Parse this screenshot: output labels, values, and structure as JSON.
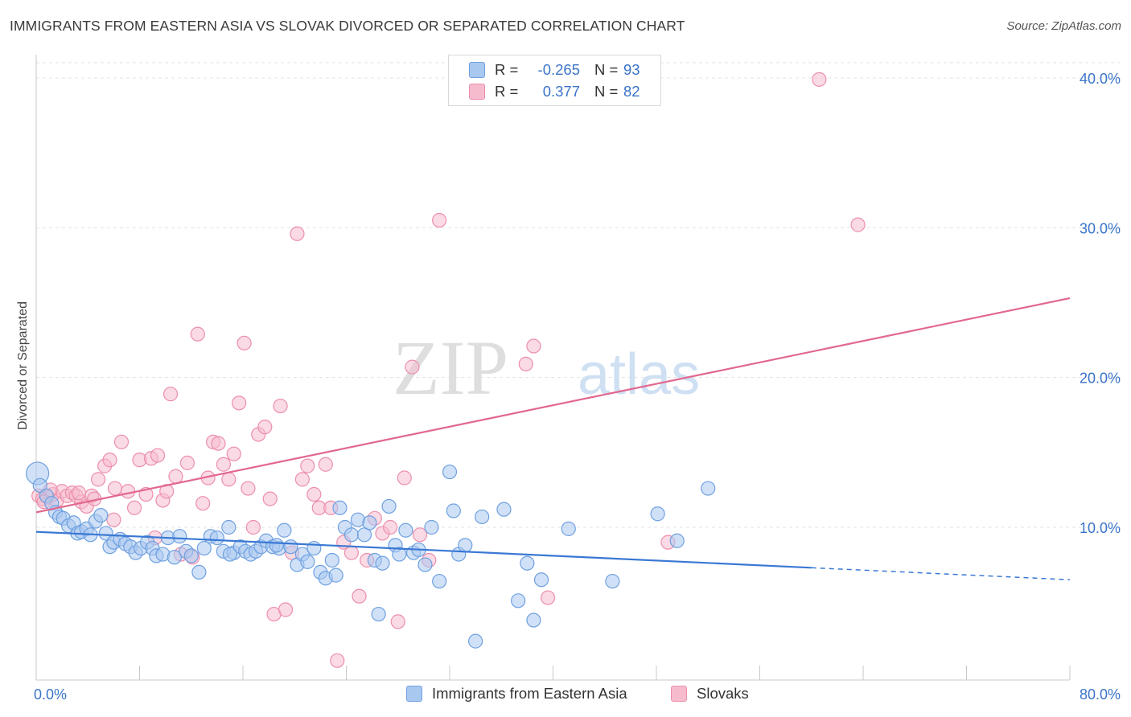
{
  "header": {
    "title": "IMMIGRANTS FROM EASTERN ASIA VS SLOVAK DIVORCED OR SEPARATED CORRELATION CHART",
    "source": "Source: ZipAtlas.com"
  },
  "watermark": {
    "zip": "ZIP",
    "atlas": "atlas"
  },
  "colors": {
    "blue_fill": "#a9c8f0",
    "blue_stroke": "#6fa0e0",
    "blue_line": "#3a78d4",
    "pink_fill": "#f6bccd",
    "pink_stroke": "#ec8fac",
    "pink_line": "#e2678f",
    "tick_text": "#3b74c9",
    "grid": "#e3e3e3"
  },
  "legend_top": {
    "rows": [
      {
        "r_label": "R =",
        "r_value": "-0.265",
        "n_label": "N =",
        "n_value": "93",
        "series": "blue"
      },
      {
        "r_label": "R =",
        "r_value": "0.377",
        "n_label": "N =",
        "n_value": "82",
        "series": "pink"
      }
    ]
  },
  "legend_bottom": {
    "items": [
      {
        "label": "Immigrants from Eastern Asia",
        "series": "blue"
      },
      {
        "label": "Slovaks",
        "series": "pink"
      }
    ]
  },
  "chart_data": {
    "type": "scatter",
    "title": "IMMIGRANTS FROM EASTERN ASIA VS SLOVAK DIVORCED OR SEPARATED CORRELATION CHART",
    "xlabel": "",
    "ylabel": "Divorced or Separated",
    "xlim": [
      0,
      80
    ],
    "ylim": [
      0,
      42
    ],
    "x_tick_labels": [
      {
        "value": 0,
        "label": "0.0%"
      },
      {
        "value": 80,
        "label": "80.0%"
      }
    ],
    "x_minor_ticks": [
      8,
      16,
      24,
      32,
      40,
      48,
      56,
      64,
      72
    ],
    "y_ticks": [
      {
        "value": 10,
        "label": "10.0%"
      },
      {
        "value": 20,
        "label": "20.0%"
      },
      {
        "value": 30,
        "label": "30.0%"
      },
      {
        "value": 40,
        "label": "40.0%"
      }
    ],
    "grid": true,
    "legend_position": "top-center",
    "series": [
      {
        "name": "Immigrants from Eastern Asia",
        "color": "blue",
        "trend": {
          "x0": 0,
          "y0": 9.7,
          "x1": 60,
          "y1": 7.3,
          "dash_to_x": 80,
          "dash_to_y": 6.5
        },
        "points": [
          [
            0.1,
            13.6
          ],
          [
            0.3,
            12.8
          ],
          [
            0.8,
            12.1
          ],
          [
            1.2,
            11.6
          ],
          [
            1.5,
            11.0
          ],
          [
            1.8,
            10.7
          ],
          [
            2.1,
            10.6
          ],
          [
            2.5,
            10.1
          ],
          [
            2.9,
            10.3
          ],
          [
            3.2,
            9.6
          ],
          [
            3.5,
            9.7
          ],
          [
            3.9,
            9.9
          ],
          [
            4.2,
            9.5
          ],
          [
            4.6,
            10.4
          ],
          [
            5.0,
            10.8
          ],
          [
            5.4,
            9.6
          ],
          [
            5.7,
            8.7
          ],
          [
            6.0,
            9.0
          ],
          [
            6.5,
            9.2
          ],
          [
            6.9,
            8.9
          ],
          [
            7.3,
            8.7
          ],
          [
            7.7,
            8.3
          ],
          [
            8.1,
            8.6
          ],
          [
            8.6,
            9.0
          ],
          [
            9.0,
            8.6
          ],
          [
            9.3,
            8.1
          ],
          [
            9.8,
            8.2
          ],
          [
            10.2,
            9.3
          ],
          [
            10.7,
            8.0
          ],
          [
            11.1,
            9.4
          ],
          [
            11.6,
            8.4
          ],
          [
            12.0,
            8.1
          ],
          [
            12.6,
            7.0
          ],
          [
            13.0,
            8.6
          ],
          [
            13.5,
            9.4
          ],
          [
            14.0,
            9.3
          ],
          [
            14.5,
            8.4
          ],
          [
            14.9,
            10.0
          ],
          [
            15.3,
            8.3
          ],
          [
            15.8,
            8.7
          ],
          [
            16.2,
            8.4
          ],
          [
            16.6,
            8.2
          ],
          [
            17.0,
            8.4
          ],
          [
            17.4,
            8.7
          ],
          [
            17.8,
            9.1
          ],
          [
            18.3,
            8.7
          ],
          [
            18.8,
            8.6
          ],
          [
            19.2,
            9.8
          ],
          [
            19.7,
            8.7
          ],
          [
            20.2,
            7.5
          ],
          [
            20.6,
            8.2
          ],
          [
            21.0,
            7.7
          ],
          [
            21.5,
            8.6
          ],
          [
            22.0,
            7.0
          ],
          [
            22.4,
            6.6
          ],
          [
            22.9,
            7.8
          ],
          [
            23.2,
            6.8
          ],
          [
            23.5,
            11.3
          ],
          [
            23.9,
            10.0
          ],
          [
            24.4,
            9.5
          ],
          [
            24.9,
            10.5
          ],
          [
            25.4,
            9.5
          ],
          [
            25.8,
            10.3
          ],
          [
            26.2,
            7.8
          ],
          [
            26.8,
            7.6
          ],
          [
            27.3,
            11.4
          ],
          [
            27.8,
            8.8
          ],
          [
            28.1,
            8.2
          ],
          [
            28.6,
            9.8
          ],
          [
            29.2,
            8.3
          ],
          [
            29.6,
            8.5
          ],
          [
            30.1,
            7.5
          ],
          [
            30.6,
            10.0
          ],
          [
            31.2,
            6.4
          ],
          [
            32.0,
            13.7
          ],
          [
            32.3,
            11.1
          ],
          [
            32.7,
            8.2
          ],
          [
            33.2,
            8.8
          ],
          [
            34.0,
            2.4
          ],
          [
            34.5,
            10.7
          ],
          [
            36.2,
            11.2
          ],
          [
            37.3,
            5.1
          ],
          [
            38.0,
            7.6
          ],
          [
            38.5,
            3.8
          ],
          [
            39.1,
            6.5
          ],
          [
            41.2,
            9.9
          ],
          [
            44.6,
            6.4
          ],
          [
            48.1,
            10.9
          ],
          [
            49.6,
            9.1
          ],
          [
            52.0,
            12.6
          ],
          [
            26.5,
            4.2
          ],
          [
            18.6,
            8.8
          ],
          [
            15.0,
            8.2
          ]
        ]
      },
      {
        "name": "Slovaks",
        "color": "pink",
        "trend": {
          "x0": 0,
          "y0": 11.0,
          "x1": 80,
          "y1": 25.3
        },
        "points": [
          [
            0.2,
            12.1
          ],
          [
            0.5,
            11.9
          ],
          [
            0.9,
            12.0
          ],
          [
            1.3,
            12.2
          ],
          [
            1.6,
            11.8
          ],
          [
            2.0,
            12.4
          ],
          [
            2.4,
            12.1
          ],
          [
            2.8,
            12.3
          ],
          [
            3.1,
            12.1
          ],
          [
            3.5,
            11.7
          ],
          [
            3.9,
            11.4
          ],
          [
            4.3,
            12.1
          ],
          [
            4.8,
            13.2
          ],
          [
            5.3,
            14.1
          ],
          [
            5.7,
            14.5
          ],
          [
            6.1,
            12.6
          ],
          [
            6.6,
            15.7
          ],
          [
            7.1,
            12.4
          ],
          [
            7.6,
            11.3
          ],
          [
            8.0,
            14.5
          ],
          [
            8.5,
            12.2
          ],
          [
            8.9,
            14.6
          ],
          [
            9.4,
            14.8
          ],
          [
            9.8,
            11.8
          ],
          [
            10.1,
            12.4
          ],
          [
            10.4,
            18.9
          ],
          [
            10.8,
            13.4
          ],
          [
            11.2,
            8.2
          ],
          [
            11.7,
            14.3
          ],
          [
            12.1,
            8.0
          ],
          [
            12.5,
            22.9
          ],
          [
            12.9,
            11.6
          ],
          [
            13.3,
            13.3
          ],
          [
            13.7,
            15.7
          ],
          [
            14.1,
            15.6
          ],
          [
            14.5,
            14.2
          ],
          [
            14.9,
            13.2
          ],
          [
            15.3,
            14.9
          ],
          [
            15.7,
            18.3
          ],
          [
            16.1,
            22.3
          ],
          [
            16.4,
            12.6
          ],
          [
            16.8,
            10.0
          ],
          [
            17.2,
            16.2
          ],
          [
            17.7,
            16.7
          ],
          [
            18.1,
            11.9
          ],
          [
            18.4,
            4.2
          ],
          [
            18.9,
            18.1
          ],
          [
            19.3,
            4.5
          ],
          [
            19.8,
            8.3
          ],
          [
            20.2,
            29.6
          ],
          [
            20.6,
            13.2
          ],
          [
            21.0,
            14.1
          ],
          [
            21.5,
            12.2
          ],
          [
            21.9,
            11.3
          ],
          [
            22.4,
            14.2
          ],
          [
            22.8,
            11.3
          ],
          [
            23.3,
            1.1
          ],
          [
            23.8,
            9.0
          ],
          [
            24.4,
            8.3
          ],
          [
            25.0,
            5.4
          ],
          [
            25.6,
            7.8
          ],
          [
            26.2,
            10.6
          ],
          [
            26.8,
            9.6
          ],
          [
            27.4,
            10.0
          ],
          [
            28.0,
            3.7
          ],
          [
            28.5,
            13.3
          ],
          [
            29.1,
            20.7
          ],
          [
            29.7,
            9.5
          ],
          [
            30.4,
            7.8
          ],
          [
            31.2,
            30.5
          ],
          [
            37.9,
            20.9
          ],
          [
            38.5,
            22.1
          ],
          [
            39.6,
            5.3
          ],
          [
            48.9,
            9.0
          ],
          [
            60.6,
            39.9
          ],
          [
            63.6,
            30.2
          ],
          [
            6.0,
            10.5
          ],
          [
            9.2,
            9.3
          ],
          [
            3.3,
            12.3
          ],
          [
            4.5,
            11.9
          ],
          [
            1.1,
            12.5
          ],
          [
            0.6,
            11.7
          ]
        ]
      }
    ]
  }
}
